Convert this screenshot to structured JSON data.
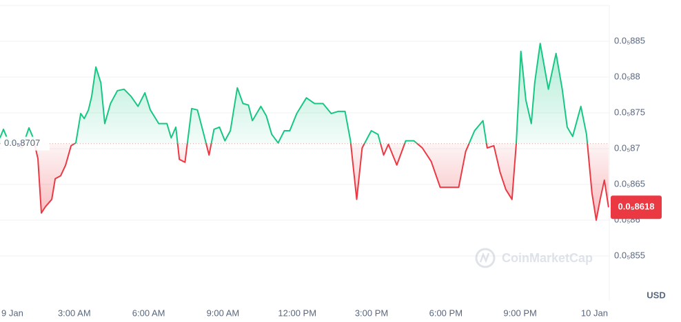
{
  "chart_data": {
    "type": "line",
    "watermark": "CoinMarketCap",
    "currency": "USD",
    "baseline": {
      "value": 8.707e-06,
      "label": "0.0₅8707"
    },
    "current": {
      "value": 8.618e-06,
      "label": "0.0₅8618"
    },
    "colors": {
      "up": "#16c784",
      "down": "#ea3943"
    },
    "grid": true,
    "xlim": [
      0,
      24.6
    ],
    "xticks": [
      {
        "value": 0,
        "label": "9 Jan"
      },
      {
        "value": 3,
        "label": "3:00 AM"
      },
      {
        "value": 6,
        "label": "6:00 AM"
      },
      {
        "value": 9,
        "label": "9:00 AM"
      },
      {
        "value": 12,
        "label": "12:00 PM"
      },
      {
        "value": 15,
        "label": "3:00 PM"
      },
      {
        "value": 18,
        "label": "6:00 PM"
      },
      {
        "value": 21,
        "label": "9:00 PM"
      },
      {
        "value": 24,
        "label": "10 Jan"
      }
    ],
    "ylim": [
      8.5e-06,
      8.9e-06
    ],
    "yticks": [
      {
        "value": 8.55e-06,
        "label": "0.0₅855"
      },
      {
        "value": 8.6e-06,
        "label": "0.0₅86"
      },
      {
        "value": 8.65e-06,
        "label": "0.0₅865"
      },
      {
        "value": 8.7e-06,
        "label": "0.0₅87"
      },
      {
        "value": 8.75e-06,
        "label": "0.0₅875"
      },
      {
        "value": 8.8e-06,
        "label": "0.0₅88"
      },
      {
        "value": 8.85e-06,
        "label": "0.0₅885"
      }
    ],
    "x": [
      0,
      0.14,
      0.33,
      0.61,
      0.89,
      1.17,
      1.34,
      1.53,
      1.67,
      1.84,
      2.09,
      2.23,
      2.45,
      2.65,
      2.87,
      3.06,
      3.26,
      3.4,
      3.57,
      3.7,
      3.87,
      4.07,
      4.23,
      4.46,
      4.74,
      5.01,
      5.29,
      5.57,
      5.85,
      6.07,
      6.41,
      6.74,
      6.91,
      7.1,
      7.24,
      7.47,
      7.74,
      7.97,
      8.19,
      8.44,
      8.64,
      8.86,
      9.08,
      9.3,
      9.58,
      9.81,
      10.03,
      10.19,
      10.53,
      10.75,
      10.97,
      11.23,
      11.48,
      11.7,
      11.98,
      12.37,
      12.7,
      13.04,
      13.37,
      13.65,
      13.93,
      14.15,
      14.4,
      14.62,
      14.99,
      15.26,
      15.49,
      15.68,
      16.02,
      16.38,
      16.71,
      17.05,
      17.41,
      17.77,
      18.16,
      18.52,
      18.8,
      19.16,
      19.5,
      19.67,
      19.94,
      20.19,
      20.42,
      20.67,
      20.84,
      21.03,
      21.23,
      21.45,
      21.59,
      21.81,
      22.14,
      22.45,
      22.7,
      22.9,
      23.12,
      23.45,
      23.68,
      23.9,
      24.07,
      24.23,
      24.4,
      24.57
    ],
    "values": [
      8.715e-06,
      8.727e-06,
      8.711e-06,
      8.708e-06,
      8.701e-06,
      8.729e-06,
      8.715e-06,
      8.686e-06,
      8.61e-06,
      8.619e-06,
      8.629e-06,
      8.658e-06,
      8.662e-06,
      8.677e-06,
      8.704e-06,
      8.708e-06,
      8.749e-06,
      8.742e-06,
      8.754e-06,
      8.773e-06,
      8.814e-06,
      8.792e-06,
      8.735e-06,
      8.763e-06,
      8.781e-06,
      8.783e-06,
      8.773e-06,
      8.759e-06,
      8.778e-06,
      8.754e-06,
      8.735e-06,
      8.735e-06,
      8.715e-06,
      8.73e-06,
      8.685e-06,
      8.681e-06,
      8.756e-06,
      8.754e-06,
      8.725e-06,
      8.691e-06,
      8.727e-06,
      8.73e-06,
      8.711e-06,
      8.725e-06,
      8.785e-06,
      8.763e-06,
      8.761e-06,
      8.739e-06,
      8.759e-06,
      8.746e-06,
      8.72e-06,
      8.708e-06,
      8.725e-06,
      8.725e-06,
      8.749e-06,
      8.771e-06,
      8.763e-06,
      8.763e-06,
      8.749e-06,
      8.752e-06,
      8.752e-06,
      8.711e-06,
      8.629e-06,
      8.701e-06,
      8.725e-06,
      8.72e-06,
      8.691e-06,
      8.706e-06,
      8.677e-06,
      8.711e-06,
      8.711e-06,
      8.701e-06,
      8.682e-06,
      8.646e-06,
      8.646e-06,
      8.646e-06,
      8.696e-06,
      8.725e-06,
      8.739e-06,
      8.701e-06,
      8.704e-06,
      8.667e-06,
      8.643e-06,
      8.629e-06,
      8.706e-06,
      8.836e-06,
      8.768e-06,
      8.735e-06,
      8.792e-06,
      8.847e-06,
      8.783e-06,
      8.833e-06,
      8.783e-06,
      8.73e-06,
      8.717e-06,
      8.759e-06,
      8.72e-06,
      8.638e-06,
      8.6e-06,
      8.629e-06,
      8.656e-06,
      8.618e-06
    ]
  }
}
